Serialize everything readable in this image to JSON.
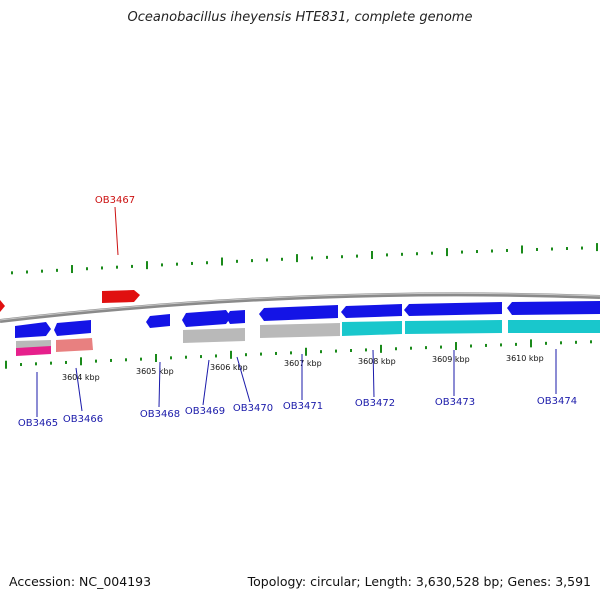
{
  "title": "Oceanobacillus iheyensis HTE831, complete genome",
  "footer": {
    "accession": "Accession: NC_004193",
    "summary": "Topology: circular; Length: 3,630,528 bp; Genes: 3,591"
  },
  "colors": {
    "cds_forward": "#1414e6",
    "highlight": "#e01010",
    "feature_cyan": "#19c7cc",
    "feature_gray": "#b9b9b9",
    "feature_pink": "#e6208c",
    "feature_salmon": "#e88080",
    "backbone": "#8a8a8a",
    "tick": "#1a8a1a",
    "label_blue": "#1a1aaa",
    "label_red": "#cc1111"
  },
  "scale_labels": [
    {
      "text": "3604 kbp"
    },
    {
      "text": "3605 kbp"
    },
    {
      "text": "3606 kbp"
    },
    {
      "text": "3607 kbp"
    },
    {
      "text": "3608 kbp"
    },
    {
      "text": "3609 kbp"
    },
    {
      "text": "3610 kbp"
    }
  ],
  "gene_labels": [
    {
      "text": "OB3467",
      "highlight": true
    },
    {
      "text": "OB3465"
    },
    {
      "text": "OB3466"
    },
    {
      "text": "OB3468"
    },
    {
      "text": "OB3469"
    },
    {
      "text": "OB3470"
    },
    {
      "text": "OB3471"
    },
    {
      "text": "OB3472"
    },
    {
      "text": "OB3473"
    },
    {
      "text": "OB3474"
    }
  ]
}
